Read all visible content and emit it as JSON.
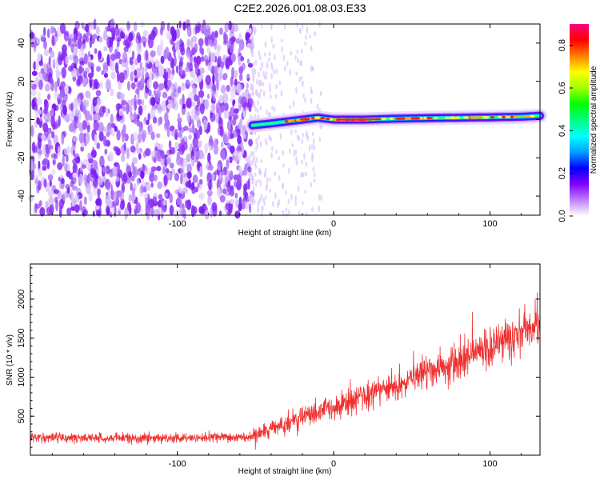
{
  "title": "C2E2.2026.001.08.03.E33",
  "chart_data": [
    {
      "type": "heatmap",
      "xlabel": "Height of straight line (km)",
      "ylabel": "Frequency (Hz)",
      "xlim": [
        -194,
        132
      ],
      "ylim": [
        -50,
        50
      ],
      "xticks": [
        -100,
        0,
        100
      ],
      "yticks": [
        -40,
        -20,
        0,
        20,
        40
      ],
      "colorbar": {
        "label": "Normalized spectral amplitude",
        "range": [
          0,
          0.9
        ],
        "ticks": [
          0,
          0.2,
          0.4,
          0.6,
          0.8
        ],
        "colors": [
          "#ffffff",
          "#c080ff",
          "#8000ff",
          "#0000ff",
          "#00a0ff",
          "#00ffff",
          "#00ff80",
          "#00ff00",
          "#a0ff00",
          "#ffff00",
          "#ff8000",
          "#ff0000",
          "#ff0080"
        ]
      },
      "noise_region": {
        "x": [
          -194,
          -52
        ],
        "y": [
          -50,
          50
        ]
      },
      "signal_track": {
        "x": [
          -52,
          -40,
          -30,
          -20,
          -10,
          0,
          20,
          40,
          60,
          80,
          100,
          120,
          132
        ],
        "y": [
          -3,
          -2,
          -1,
          0,
          1,
          0,
          0,
          0.5,
          0.8,
          1,
          1.2,
          1.5,
          2
        ]
      }
    },
    {
      "type": "line",
      "xlabel": "Height of straight line (km)",
      "ylabel": "SNR (10 * v/v)",
      "xlim": [
        -194,
        132
      ],
      "ylim": [
        0,
        2450
      ],
      "xticks": [
        -100,
        0,
        100
      ],
      "yticks": [
        500,
        1000,
        1500,
        2000
      ],
      "color": "#f03030",
      "trend": {
        "x": [
          -194,
          -150,
          -100,
          -52,
          -40,
          -20,
          0,
          20,
          40,
          60,
          80,
          100,
          120,
          132
        ],
        "y": [
          230,
          220,
          220,
          230,
          330,
          480,
          620,
          760,
          900,
          1070,
          1200,
          1380,
          1550,
          1700
        ]
      }
    }
  ]
}
